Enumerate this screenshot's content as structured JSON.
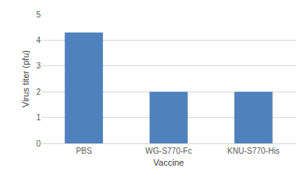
{
  "chart_data": {
    "type": "bar",
    "x_label": "Vaccine",
    "y_label": "Virus titer (pfu)",
    "categories": [
      "PBS",
      "WG-S770-Fc",
      "KNU-S770-His"
    ],
    "values": [
      4.3,
      2,
      2
    ],
    "color": "#4f81bd",
    "ylim": [
      0,
      5
    ],
    "yticks": [
      0,
      1,
      2,
      3,
      4,
      5
    ],
    "grid": true
  }
}
